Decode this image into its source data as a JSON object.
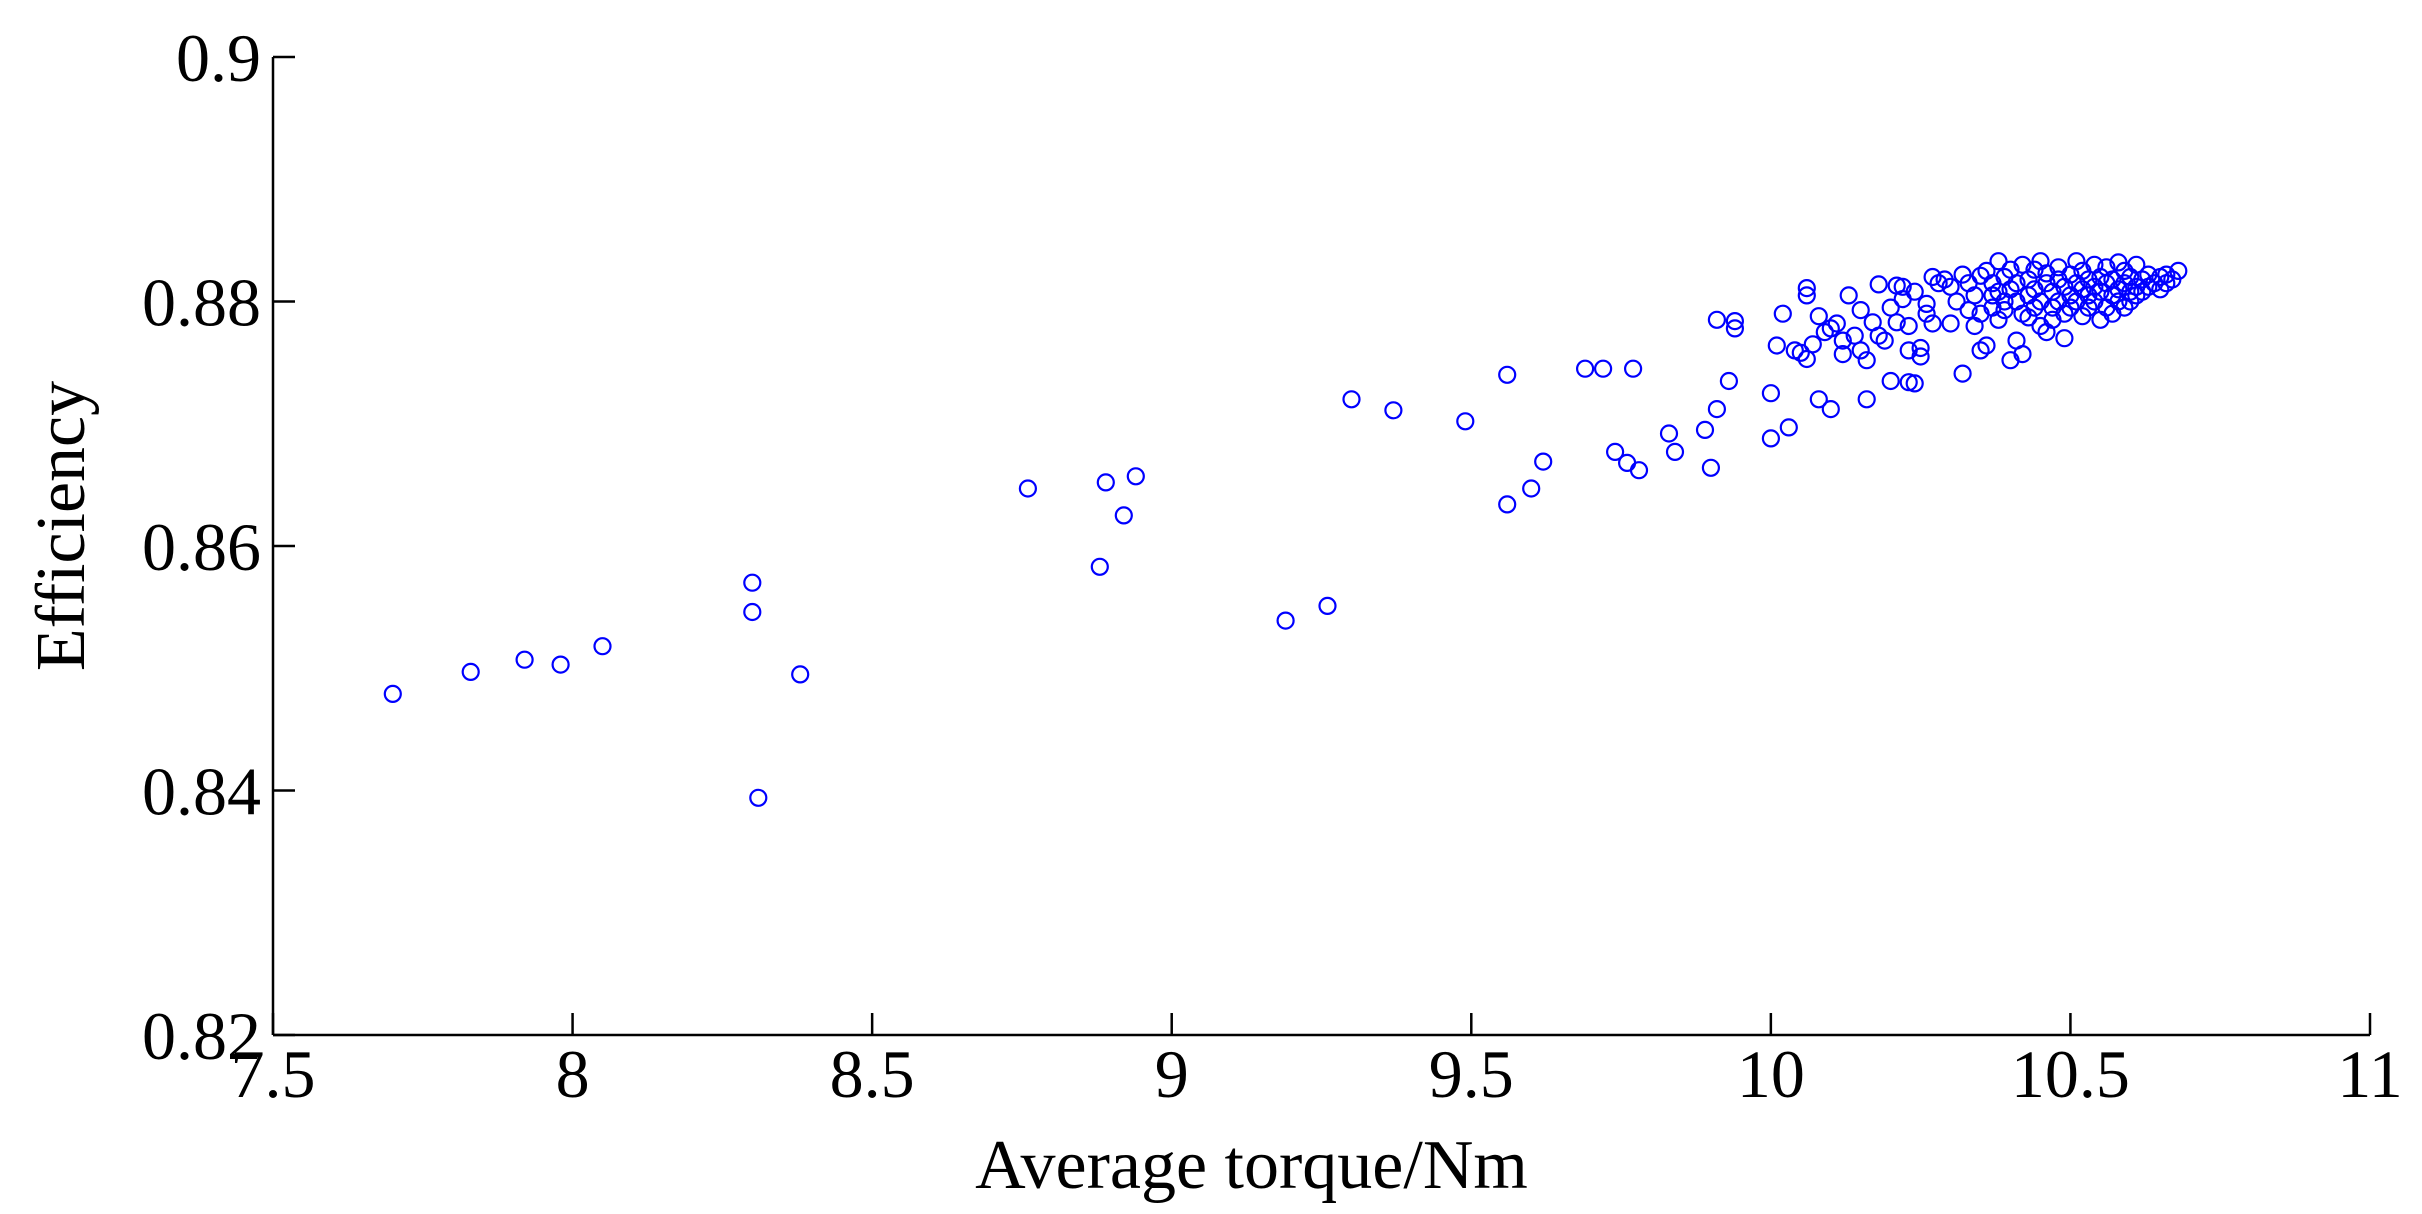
{
  "chart_data": {
    "type": "scatter",
    "xlabel": "Average torque/Nm",
    "ylabel": "Efficiency",
    "xlim": [
      7.5,
      11
    ],
    "ylim": [
      0.82,
      0.9
    ],
    "x_ticks": [
      7.5,
      8,
      8.5,
      9,
      9.5,
      10,
      10.5,
      11
    ],
    "x_tick_labels": [
      "7.5",
      "8",
      "8.5",
      "9",
      "9.5",
      "10",
      "10.5",
      "11"
    ],
    "y_ticks": [
      0.82,
      0.84,
      0.86,
      0.88,
      0.9
    ],
    "y_tick_labels": [
      "0.82",
      "0.84",
      "0.86",
      "0.88",
      "0.9"
    ],
    "grid": false,
    "marker": "circle-open",
    "color": "#0000ff",
    "series": [
      {
        "points": [
          [
            7.7,
            0.8479
          ],
          [
            7.83,
            0.8497
          ],
          [
            7.92,
            0.8507
          ],
          [
            7.98,
            0.8503
          ],
          [
            8.05,
            0.8518
          ],
          [
            8.3,
            0.857
          ],
          [
            8.3,
            0.8546
          ],
          [
            8.31,
            0.8394
          ],
          [
            8.38,
            0.8495
          ],
          [
            8.76,
            0.8647
          ],
          [
            8.88,
            0.8583
          ],
          [
            8.89,
            0.8652
          ],
          [
            8.92,
            0.8625
          ],
          [
            8.94,
            0.8657
          ],
          [
            9.19,
            0.8539
          ],
          [
            9.26,
            0.8551
          ],
          [
            9.3,
            0.872
          ],
          [
            9.37,
            0.8711
          ],
          [
            9.49,
            0.8702
          ],
          [
            9.56,
            0.874
          ],
          [
            9.56,
            0.8634
          ],
          [
            9.6,
            0.8647
          ],
          [
            9.62,
            0.8669
          ],
          [
            9.69,
            0.8745
          ],
          [
            9.72,
            0.8745
          ],
          [
            9.74,
            0.8677
          ],
          [
            9.76,
            0.8668
          ],
          [
            9.77,
            0.8745
          ],
          [
            9.78,
            0.8662
          ],
          [
            9.83,
            0.8692
          ],
          [
            9.84,
            0.8677
          ],
          [
            9.89,
            0.8695
          ],
          [
            9.9,
            0.8664
          ],
          [
            9.91,
            0.8712
          ],
          [
            9.91,
            0.8785
          ],
          [
            9.93,
            0.8735
          ],
          [
            9.94,
            0.8784
          ],
          [
            9.94,
            0.8778
          ],
          [
            10.0,
            0.8725
          ],
          [
            10.0,
            0.8688
          ],
          [
            10.01,
            0.8764
          ],
          [
            10.02,
            0.879
          ],
          [
            10.03,
            0.8697
          ],
          [
            10.04,
            0.876
          ],
          [
            10.05,
            0.8758
          ],
          [
            10.06,
            0.8753
          ],
          [
            10.06,
            0.8811
          ],
          [
            10.06,
            0.8805
          ],
          [
            10.07,
            0.8765
          ],
          [
            10.08,
            0.8788
          ],
          [
            10.08,
            0.872
          ],
          [
            10.09,
            0.8775
          ],
          [
            10.1,
            0.8712
          ],
          [
            10.1,
            0.8778
          ],
          [
            10.11,
            0.8782
          ],
          [
            10.12,
            0.8757
          ],
          [
            10.12,
            0.8768
          ],
          [
            10.13,
            0.8805
          ],
          [
            10.14,
            0.8772
          ],
          [
            10.15,
            0.8793
          ],
          [
            10.15,
            0.876
          ],
          [
            10.16,
            0.8752
          ],
          [
            10.16,
            0.872
          ],
          [
            10.17,
            0.8783
          ],
          [
            10.18,
            0.8772
          ],
          [
            10.18,
            0.8814
          ],
          [
            10.19,
            0.8768
          ],
          [
            10.2,
            0.8735
          ],
          [
            10.2,
            0.8795
          ],
          [
            10.21,
            0.8813
          ],
          [
            10.21,
            0.8783
          ],
          [
            10.22,
            0.8812
          ],
          [
            10.22,
            0.8802
          ],
          [
            10.23,
            0.876
          ],
          [
            10.23,
            0.8734
          ],
          [
            10.23,
            0.878
          ],
          [
            10.24,
            0.8808
          ],
          [
            10.24,
            0.8733
          ],
          [
            10.25,
            0.8755
          ],
          [
            10.25,
            0.8762
          ],
          [
            10.26,
            0.879
          ],
          [
            10.26,
            0.8798
          ],
          [
            10.27,
            0.8782
          ],
          [
            10.27,
            0.882
          ],
          [
            10.28,
            0.8815
          ],
          [
            10.29,
            0.8818
          ],
          [
            10.3,
            0.8812
          ],
          [
            10.3,
            0.8782
          ],
          [
            10.31,
            0.88
          ],
          [
            10.32,
            0.8741
          ],
          [
            10.32,
            0.8822
          ],
          [
            10.33,
            0.8793
          ],
          [
            10.33,
            0.8815
          ],
          [
            10.34,
            0.878
          ],
          [
            10.34,
            0.8805
          ],
          [
            10.35,
            0.8821
          ],
          [
            10.35,
            0.876
          ],
          [
            10.35,
            0.879
          ],
          [
            10.36,
            0.8825
          ],
          [
            10.36,
            0.8764
          ],
          [
            10.37,
            0.8805
          ],
          [
            10.37,
            0.8795
          ],
          [
            10.37,
            0.8815
          ],
          [
            10.38,
            0.8785
          ],
          [
            10.38,
            0.8833
          ],
          [
            10.38,
            0.8808
          ],
          [
            10.39,
            0.88
          ],
          [
            10.39,
            0.882
          ],
          [
            10.39,
            0.8793
          ],
          [
            10.4,
            0.881
          ],
          [
            10.4,
            0.8752
          ],
          [
            10.4,
            0.8826
          ],
          [
            10.41,
            0.8768
          ],
          [
            10.41,
            0.88
          ],
          [
            10.41,
            0.8815
          ],
          [
            10.42,
            0.879
          ],
          [
            10.42,
            0.883
          ],
          [
            10.42,
            0.8757
          ],
          [
            10.43,
            0.8805
          ],
          [
            10.43,
            0.8818
          ],
          [
            10.43,
            0.8787
          ],
          [
            10.44,
            0.8826
          ],
          [
            10.44,
            0.8795
          ],
          [
            10.44,
            0.881
          ],
          [
            10.45,
            0.878
          ],
          [
            10.45,
            0.8833
          ],
          [
            10.45,
            0.88
          ],
          [
            10.46,
            0.8815
          ],
          [
            10.46,
            0.8775
          ],
          [
            10.46,
            0.8823
          ],
          [
            10.47,
            0.8795
          ],
          [
            10.47,
            0.8808
          ],
          [
            10.47,
            0.8785
          ],
          [
            10.48,
            0.8818
          ],
          [
            10.48,
            0.88
          ],
          [
            10.48,
            0.8828
          ],
          [
            10.49,
            0.879
          ],
          [
            10.49,
            0.8812
          ],
          [
            10.49,
            0.877
          ],
          [
            10.5,
            0.8805
          ],
          [
            10.5,
            0.8822
          ],
          [
            10.5,
            0.8795
          ],
          [
            10.51,
            0.8815
          ],
          [
            10.51,
            0.8833
          ],
          [
            10.51,
            0.88
          ],
          [
            10.52,
            0.881
          ],
          [
            10.52,
            0.8788
          ],
          [
            10.52,
            0.8825
          ],
          [
            10.53,
            0.8805
          ],
          [
            10.53,
            0.8818
          ],
          [
            10.53,
            0.8795
          ],
          [
            10.54,
            0.8812
          ],
          [
            10.54,
            0.883
          ],
          [
            10.54,
            0.88
          ],
          [
            10.55,
            0.8785
          ],
          [
            10.55,
            0.882
          ],
          [
            10.55,
            0.8808
          ],
          [
            10.56,
            0.8815
          ],
          [
            10.56,
            0.8795
          ],
          [
            10.56,
            0.8828
          ],
          [
            10.57,
            0.8805
          ],
          [
            10.57,
            0.879
          ],
          [
            10.57,
            0.8818
          ],
          [
            10.58,
            0.881
          ],
          [
            10.58,
            0.8832
          ],
          [
            10.58,
            0.88
          ],
          [
            10.59,
            0.8815
          ],
          [
            10.59,
            0.8795
          ],
          [
            10.59,
            0.8825
          ],
          [
            10.6,
            0.8808
          ],
          [
            10.6,
            0.882
          ],
          [
            10.6,
            0.88
          ],
          [
            10.61,
            0.8812
          ],
          [
            10.61,
            0.883
          ],
          [
            10.61,
            0.8805
          ],
          [
            10.62,
            0.8818
          ],
          [
            10.62,
            0.8808
          ],
          [
            10.63,
            0.8822
          ],
          [
            10.63,
            0.8812
          ],
          [
            10.64,
            0.8815
          ],
          [
            10.65,
            0.882
          ],
          [
            10.65,
            0.881
          ],
          [
            10.66,
            0.8822
          ],
          [
            10.66,
            0.8815
          ],
          [
            10.67,
            0.8818
          ],
          [
            10.68,
            0.8825
          ]
        ]
      }
    ]
  }
}
